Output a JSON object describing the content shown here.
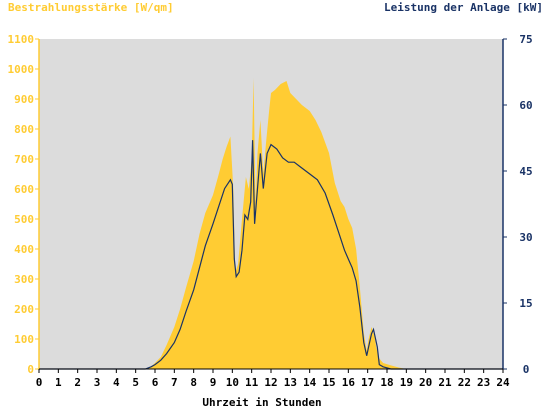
{
  "chart_data": {
    "type": "area",
    "title_left": "Bestrahlungsstärke [W/qm]",
    "title_right": "Leistung der Anlage [kW]",
    "xlabel": "Uhrzeit in Stunden",
    "xlim": [
      0,
      24
    ],
    "x_ticks": [
      "0",
      "1",
      "2",
      "3",
      "4",
      "5",
      "6",
      "7",
      "8",
      "9",
      "10",
      "11",
      "12",
      "13",
      "14",
      "15",
      "16",
      "17",
      "18",
      "19",
      "20",
      "21",
      "22",
      "23",
      "24"
    ],
    "y_left_lim": [
      0,
      1100
    ],
    "y_left_ticks": [
      "0",
      "100",
      "200",
      "300",
      "400",
      "500",
      "600",
      "700",
      "800",
      "900",
      "1000",
      "1100"
    ],
    "y_right_lim": [
      0,
      75
    ],
    "y_right_ticks": [
      "0",
      "15",
      "30",
      "45",
      "60",
      "75"
    ],
    "grid": false,
    "colors": {
      "irradiance": "#ffcc33",
      "power": "#1a3366",
      "plot_bg": "#dcdcdc",
      "left_axis_text": "#ffcc33",
      "right_axis_text": "#1a3366",
      "axis_text": "#000000"
    },
    "series": [
      {
        "axis": "left",
        "style": "filled-area",
        "x": [
          0,
          5.5,
          5.8,
          6.0,
          6.3,
          6.6,
          7.0,
          7.3,
          7.6,
          8.0,
          8.3,
          8.6,
          9.0,
          9.3,
          9.5,
          9.7,
          9.9,
          10.05,
          10.15,
          10.3,
          10.5,
          10.7,
          10.85,
          11.0,
          11.1,
          11.2,
          11.3,
          11.45,
          11.6,
          11.75,
          11.9,
          12.0,
          12.2,
          12.5,
          12.8,
          13.0,
          13.3,
          13.6,
          14.0,
          14.3,
          14.6,
          15.0,
          15.3,
          15.6,
          15.8,
          16.0,
          16.2,
          16.4,
          16.6,
          16.8,
          16.95,
          17.05,
          17.2,
          17.35,
          17.45,
          17.6,
          17.8,
          18.2,
          18.6,
          19.0,
          24
        ],
        "values": [
          0,
          0,
          8,
          20,
          40,
          80,
          140,
          200,
          270,
          360,
          450,
          520,
          580,
          650,
          700,
          740,
          775,
          600,
          320,
          350,
          500,
          640,
          600,
          700,
          970,
          550,
          720,
          830,
          650,
          760,
          860,
          920,
          930,
          950,
          960,
          920,
          900,
          880,
          860,
          830,
          790,
          720,
          620,
          560,
          540,
          500,
          470,
          400,
          270,
          120,
          60,
          100,
          140,
          110,
          70,
          35,
          20,
          12,
          5,
          0,
          0
        ]
      },
      {
        "axis": "right",
        "style": "line",
        "x": [
          0,
          5.5,
          5.8,
          6.0,
          6.3,
          6.6,
          7.0,
          7.3,
          7.6,
          8.0,
          8.3,
          8.6,
          9.0,
          9.3,
          9.6,
          9.9,
          10.0,
          10.1,
          10.2,
          10.35,
          10.5,
          10.65,
          10.8,
          10.95,
          11.05,
          11.15,
          11.3,
          11.45,
          11.6,
          11.8,
          12.0,
          12.3,
          12.6,
          12.9,
          13.2,
          13.5,
          13.8,
          14.1,
          14.4,
          14.8,
          15.2,
          15.5,
          15.8,
          16.0,
          16.2,
          16.4,
          16.6,
          16.8,
          16.95,
          17.05,
          17.2,
          17.3,
          17.4,
          17.5,
          17.6,
          17.8,
          18.2,
          18.6,
          19.0,
          24
        ],
        "values": [
          0,
          0,
          0.5,
          1,
          2,
          3.5,
          6,
          9,
          13,
          18,
          23,
          28,
          33,
          37,
          41,
          43,
          42,
          25,
          21,
          22,
          27,
          35,
          34,
          38,
          52,
          33,
          41,
          49,
          41,
          49,
          51,
          50,
          48,
          47,
          47,
          46,
          45,
          44,
          43,
          40,
          35,
          31,
          27,
          25,
          23,
          20,
          14,
          6,
          3,
          5,
          8,
          9,
          7,
          5,
          1,
          0.5,
          0,
          0,
          0,
          0
        ]
      }
    ]
  }
}
